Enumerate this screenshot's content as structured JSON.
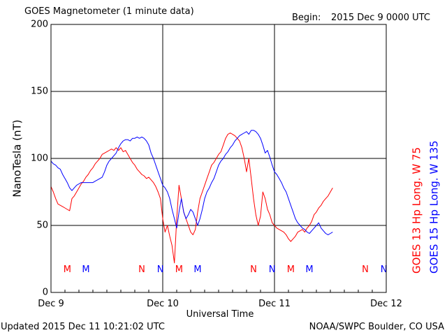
{
  "header": {
    "title": "GOES Magnetometer (1 minute data)",
    "begin_label": "Begin:",
    "begin_value": "2015 Dec 9 0000 UTC"
  },
  "footer": {
    "updated": "Updated 2015 Dec 11 10:21:02 UTC",
    "credit": "NOAA/SWPC Boulder, CO USA"
  },
  "colors": {
    "goes13": "#ff0000",
    "goes15": "#0000ff",
    "axis": "#000000"
  },
  "chart_data": {
    "type": "line",
    "title": "GOES Magnetometer (1 minute data)",
    "xlabel": "Universal Time",
    "ylabel": "NanoTesla (nT)",
    "ylim": [
      0,
      200
    ],
    "xlim": [
      0,
      72
    ],
    "x_unit": "hours since 2015 Dec 9 0000 UTC",
    "grid": true,
    "y_ticks": [
      0,
      50,
      100,
      150,
      200
    ],
    "x_ticks": [
      {
        "x": 0,
        "label": "Dec 9"
      },
      {
        "x": 24,
        "label": "Dec 10"
      },
      {
        "x": 48,
        "label": "Dec 11"
      },
      {
        "x": 72,
        "label": "Dec 12"
      }
    ],
    "legend_placement": "right",
    "series": [
      {
        "name": "GOES 13 Hp",
        "legend": "GOES 13 Hp  Long. W 75",
        "color": "#ff0000",
        "x": [
          0,
          0.5,
          1,
          1.5,
          2,
          2.5,
          3,
          3.5,
          4,
          4.5,
          5,
          5.5,
          6,
          6.5,
          7,
          7.5,
          8,
          8.5,
          9,
          9.5,
          10,
          10.5,
          11,
          11.5,
          12,
          12.5,
          13,
          13.5,
          14,
          14.5,
          15,
          15.5,
          16,
          16.5,
          17,
          17.5,
          18,
          18.5,
          19,
          19.5,
          20,
          20.5,
          21,
          21.5,
          22,
          22.5,
          23,
          23.5,
          24,
          24.5,
          25,
          25.5,
          26,
          26.5,
          27,
          27.5,
          28,
          28.5,
          29,
          29.5,
          30,
          30.5,
          31,
          31.5,
          32,
          32.5,
          33,
          33.5,
          34,
          34.5,
          35,
          35.5,
          36,
          36.5,
          37,
          37.5,
          38,
          38.5,
          39,
          39.5,
          40,
          40.5,
          41,
          41.5,
          42,
          42.5,
          43,
          43.5,
          44,
          44.5,
          45,
          45.5,
          46,
          46.5,
          47,
          47.5,
          48,
          48.5,
          49,
          49.5,
          50,
          50.5,
          51,
          51.5,
          52,
          52.5,
          53,
          53.5,
          54,
          54.5,
          55,
          55.5,
          56,
          56.5,
          57,
          57.5,
          58,
          58.5,
          59,
          59.5,
          60,
          60.5
        ],
        "values": [
          79,
          75,
          70,
          66,
          65,
          64,
          63,
          62,
          61,
          70,
          72,
          75,
          78,
          81,
          83,
          86,
          88,
          91,
          93,
          96,
          98,
          100,
          103,
          104,
          105,
          106,
          107,
          106,
          108,
          106,
          108,
          105,
          106,
          103,
          100,
          97,
          95,
          92,
          90,
          88,
          87,
          85,
          86,
          84,
          82,
          79,
          75,
          70,
          55,
          45,
          50,
          42,
          35,
          22,
          55,
          80,
          70,
          60,
          55,
          50,
          45,
          43,
          47,
          60,
          70,
          75,
          80,
          85,
          90,
          95,
          97,
          100,
          103,
          105,
          110,
          115,
          118,
          119,
          118,
          117,
          115,
          113,
          108,
          100,
          90,
          100,
          85,
          70,
          58,
          50,
          57,
          75,
          70,
          62,
          58,
          52,
          50,
          48,
          47,
          46,
          45,
          43,
          40,
          38,
          40,
          42,
          45,
          46,
          47,
          45,
          48,
          50,
          53,
          58,
          60,
          63,
          65,
          68,
          70,
          72,
          75,
          78
        ]
      },
      {
        "name": "GOES 15 Hp",
        "legend": "GOES 15 Hp  Long. W 135",
        "color": "#0000ff",
        "x": [
          0,
          0.5,
          1,
          1.5,
          2,
          2.5,
          3,
          3.5,
          4,
          4.5,
          5,
          5.5,
          6,
          6.5,
          7,
          7.5,
          8,
          8.5,
          9,
          9.5,
          10,
          10.5,
          11,
          11.5,
          12,
          12.5,
          13,
          13.5,
          14,
          14.5,
          15,
          15.5,
          16,
          16.5,
          17,
          17.5,
          18,
          18.5,
          19,
          19.5,
          20,
          20.5,
          21,
          21.5,
          22,
          22.5,
          23,
          23.5,
          24,
          24.5,
          25,
          25.5,
          26,
          26.5,
          27,
          27.5,
          28,
          28.5,
          29,
          29.5,
          30,
          30.5,
          31,
          31.5,
          32,
          32.5,
          33,
          33.5,
          34,
          34.5,
          35,
          35.5,
          36,
          36.5,
          37,
          37.5,
          38,
          38.5,
          39,
          39.5,
          40,
          40.5,
          41,
          41.5,
          42,
          42.5,
          43,
          43.5,
          44,
          44.5,
          45,
          45.5,
          46,
          46.5,
          47,
          47.5,
          48,
          48.5,
          49,
          49.5,
          50,
          50.5,
          51,
          51.5,
          52,
          52.5,
          53,
          53.5,
          54,
          54.5,
          55,
          55.5,
          56,
          56.5,
          57,
          57.5,
          58,
          58.5,
          59,
          59.5,
          60,
          60.5
        ],
        "values": [
          98,
          96,
          95,
          93,
          92,
          88,
          85,
          82,
          78,
          76,
          78,
          80,
          81,
          82,
          82,
          82,
          82,
          82,
          82,
          83,
          84,
          85,
          86,
          90,
          95,
          98,
          100,
          102,
          104,
          108,
          111,
          113,
          114,
          114,
          113,
          115,
          115,
          116,
          115,
          116,
          115,
          113,
          110,
          104,
          100,
          95,
          90,
          85,
          80,
          78,
          75,
          70,
          62,
          55,
          48,
          60,
          70,
          60,
          55,
          58,
          62,
          60,
          55,
          50,
          55,
          62,
          70,
          75,
          78,
          82,
          85,
          90,
          95,
          98,
          100,
          103,
          105,
          108,
          110,
          113,
          115,
          117,
          118,
          119,
          120,
          118,
          121,
          121,
          120,
          118,
          115,
          110,
          104,
          106,
          101,
          95,
          90,
          88,
          85,
          82,
          78,
          75,
          70,
          65,
          60,
          55,
          52,
          50,
          48,
          47,
          45,
          44,
          46,
          48,
          50,
          52,
          48,
          46,
          44,
          43,
          44,
          45
        ]
      }
    ],
    "annotations": [
      {
        "x": 3.5,
        "text": "M",
        "series": "GOES 13 Hp"
      },
      {
        "x": 7.5,
        "text": "M",
        "series": "GOES 15 Hp"
      },
      {
        "x": 19.5,
        "text": "N",
        "series": "GOES 13 Hp"
      },
      {
        "x": 23.5,
        "text": "N",
        "series": "GOES 15 Hp"
      },
      {
        "x": 27.5,
        "text": "M",
        "series": "GOES 13 Hp"
      },
      {
        "x": 31.5,
        "text": "M",
        "series": "GOES 15 Hp"
      },
      {
        "x": 43.5,
        "text": "N",
        "series": "GOES 13 Hp"
      },
      {
        "x": 47.5,
        "text": "N",
        "series": "GOES 15 Hp"
      },
      {
        "x": 51.5,
        "text": "M",
        "series": "GOES 13 Hp"
      },
      {
        "x": 55.5,
        "text": "M",
        "series": "GOES 15 Hp"
      },
      {
        "x": 67.5,
        "text": "N",
        "series": "GOES 13 Hp"
      },
      {
        "x": 71.5,
        "text": "N",
        "series": "GOES 15 Hp"
      }
    ],
    "annotation_y": 17
  }
}
